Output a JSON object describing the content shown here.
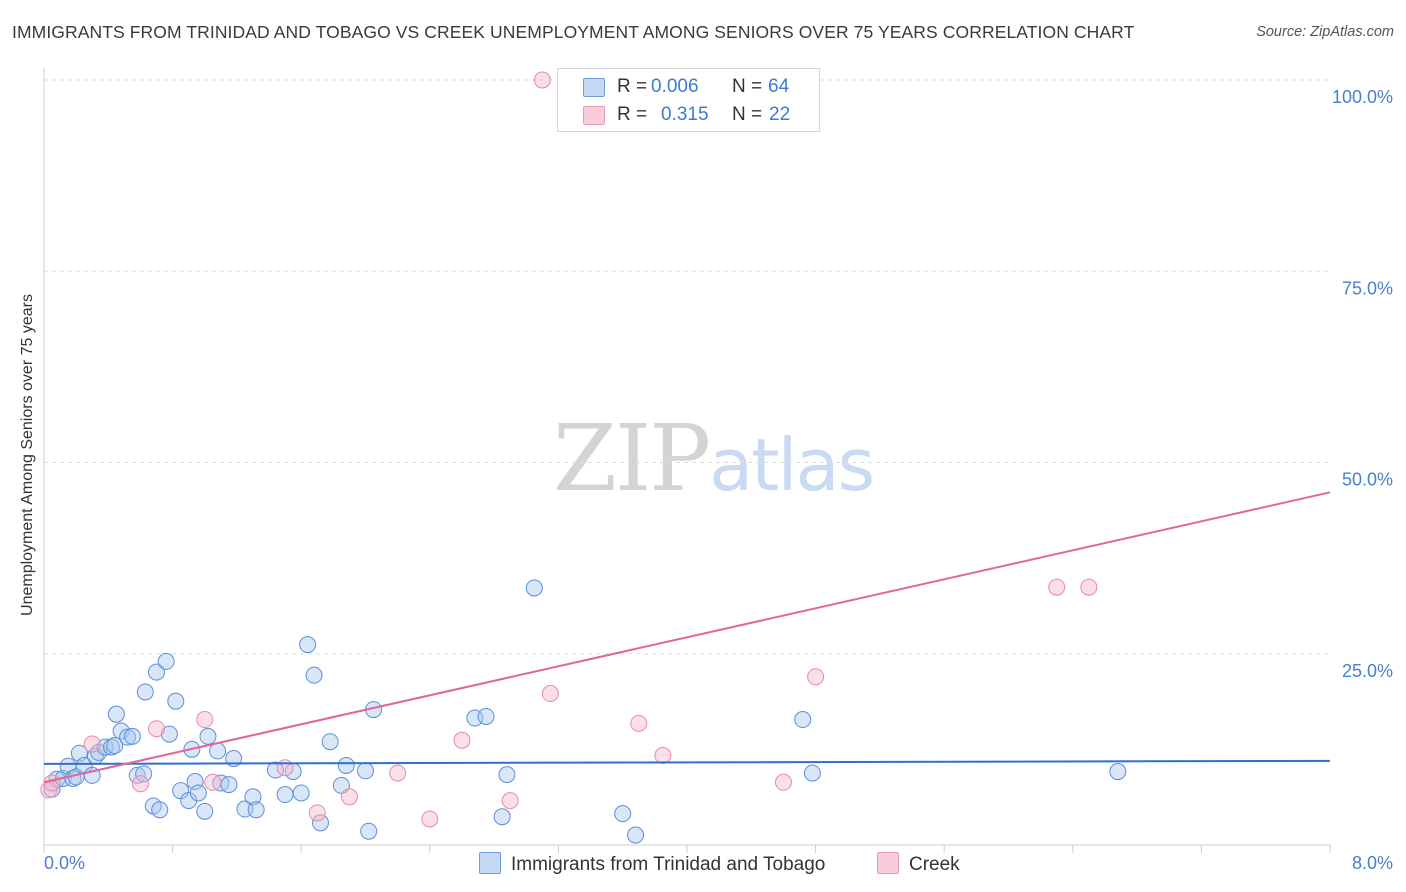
{
  "title": "IMMIGRANTS FROM TRINIDAD AND TOBAGO VS CREEK UNEMPLOYMENT AMONG SENIORS OVER 75 YEARS CORRELATION CHART",
  "source": "Source: ZipAtlas.com",
  "watermark": {
    "zip": "ZIP",
    "atlas": "atlas"
  },
  "legend": {
    "r_label": "R =",
    "n_label": "N =",
    "series": [
      {
        "r": "0.006",
        "n": "64"
      },
      {
        "r": "0.315",
        "n": "22"
      }
    ]
  },
  "colors": {
    "blue_fill": "#a9c7f0",
    "blue_stroke": "#5b8fdb",
    "blue_line": "#2f6fd0",
    "pink_fill": "#f7b9cc",
    "pink_stroke": "#e88aa7",
    "pink_line": "#e0669a",
    "axis_text": "#4a7fcf",
    "grid": "#dddddd"
  },
  "chart_data": {
    "type": "scatter",
    "title": "IMMIGRANTS FROM TRINIDAD AND TOBAGO VS CREEK UNEMPLOYMENT AMONG SENIORS OVER 75 YEARS CORRELATION CHART",
    "xlabel": "",
    "ylabel": "Unemployment Among Seniors over 75 years",
    "xlim": [
      0,
      8
    ],
    "ylim": [
      0,
      100
    ],
    "x_tick_labels": [
      "0.0%",
      "8.0%"
    ],
    "y_ticks": [
      25,
      50,
      75,
      100
    ],
    "y_tick_labels": [
      "25.0%",
      "50.0%",
      "75.0%",
      "100.0%"
    ],
    "grid": true,
    "series": [
      {
        "name": "Immigrants from Trinidad and Tobago",
        "color": "#a9c7f0",
        "trend": {
          "x": [
            0,
            8
          ],
          "y": [
            10.6,
            11.0
          ]
        },
        "points": [
          [
            0.05,
            7.3
          ],
          [
            0.08,
            8.6
          ],
          [
            0.12,
            8.7
          ],
          [
            0.15,
            10.3
          ],
          [
            0.18,
            8.7
          ],
          [
            0.2,
            8.9
          ],
          [
            0.22,
            12.0
          ],
          [
            0.25,
            10.4
          ],
          [
            0.3,
            9.1
          ],
          [
            0.32,
            11.6
          ],
          [
            0.34,
            12.1
          ],
          [
            0.38,
            12.8
          ],
          [
            0.42,
            12.8
          ],
          [
            0.44,
            13.0
          ],
          [
            0.45,
            17.1
          ],
          [
            0.48,
            14.9
          ],
          [
            0.52,
            14.1
          ],
          [
            0.55,
            14.2
          ],
          [
            0.58,
            9.1
          ],
          [
            0.62,
            9.3
          ],
          [
            0.63,
            20.0
          ],
          [
            0.68,
            5.1
          ],
          [
            0.7,
            22.6
          ],
          [
            0.72,
            4.6
          ],
          [
            0.76,
            24.0
          ],
          [
            0.78,
            14.5
          ],
          [
            0.82,
            18.8
          ],
          [
            0.85,
            7.1
          ],
          [
            0.9,
            5.8
          ],
          [
            0.92,
            12.5
          ],
          [
            0.94,
            8.3
          ],
          [
            0.96,
            6.8
          ],
          [
            1.0,
            4.4
          ],
          [
            1.02,
            14.2
          ],
          [
            1.08,
            12.3
          ],
          [
            1.1,
            8.1
          ],
          [
            1.15,
            7.9
          ],
          [
            1.18,
            11.3
          ],
          [
            1.25,
            4.7
          ],
          [
            1.3,
            6.3
          ],
          [
            1.32,
            4.6
          ],
          [
            1.44,
            9.8
          ],
          [
            1.5,
            6.6
          ],
          [
            1.55,
            9.6
          ],
          [
            1.6,
            6.8
          ],
          [
            1.64,
            26.2
          ],
          [
            1.68,
            22.2
          ],
          [
            1.72,
            2.9
          ],
          [
            1.78,
            13.5
          ],
          [
            1.85,
            7.8
          ],
          [
            1.88,
            10.4
          ],
          [
            2.0,
            9.7
          ],
          [
            2.02,
            1.8
          ],
          [
            2.05,
            17.7
          ],
          [
            2.68,
            16.6
          ],
          [
            2.75,
            16.8
          ],
          [
            2.85,
            3.7
          ],
          [
            2.88,
            9.2
          ],
          [
            3.05,
            33.6
          ],
          [
            3.6,
            4.1
          ],
          [
            3.68,
            1.3
          ],
          [
            4.72,
            16.4
          ],
          [
            4.78,
            9.4
          ],
          [
            6.68,
            9.6
          ]
        ]
      },
      {
        "name": "Creek",
        "color": "#f7b9cc",
        "trend": {
          "x": [
            0,
            8
          ],
          "y": [
            8.2,
            46.1
          ]
        },
        "points": [
          [
            0.03,
            7.2
          ],
          [
            0.05,
            8.1
          ],
          [
            0.3,
            13.2
          ],
          [
            0.6,
            8.0
          ],
          [
            0.7,
            15.2
          ],
          [
            1.0,
            16.4
          ],
          [
            1.05,
            8.2
          ],
          [
            1.5,
            10.1
          ],
          [
            1.7,
            4.2
          ],
          [
            1.9,
            6.3
          ],
          [
            2.2,
            9.4
          ],
          [
            2.4,
            3.4
          ],
          [
            2.6,
            13.7
          ],
          [
            2.9,
            5.8
          ],
          [
            3.1,
            100.0
          ],
          [
            3.15,
            19.8
          ],
          [
            3.7,
            15.9
          ],
          [
            3.85,
            11.7
          ],
          [
            4.6,
            8.2
          ],
          [
            4.8,
            22.0
          ],
          [
            6.3,
            33.7
          ],
          [
            6.5,
            33.7
          ]
        ]
      }
    ]
  }
}
